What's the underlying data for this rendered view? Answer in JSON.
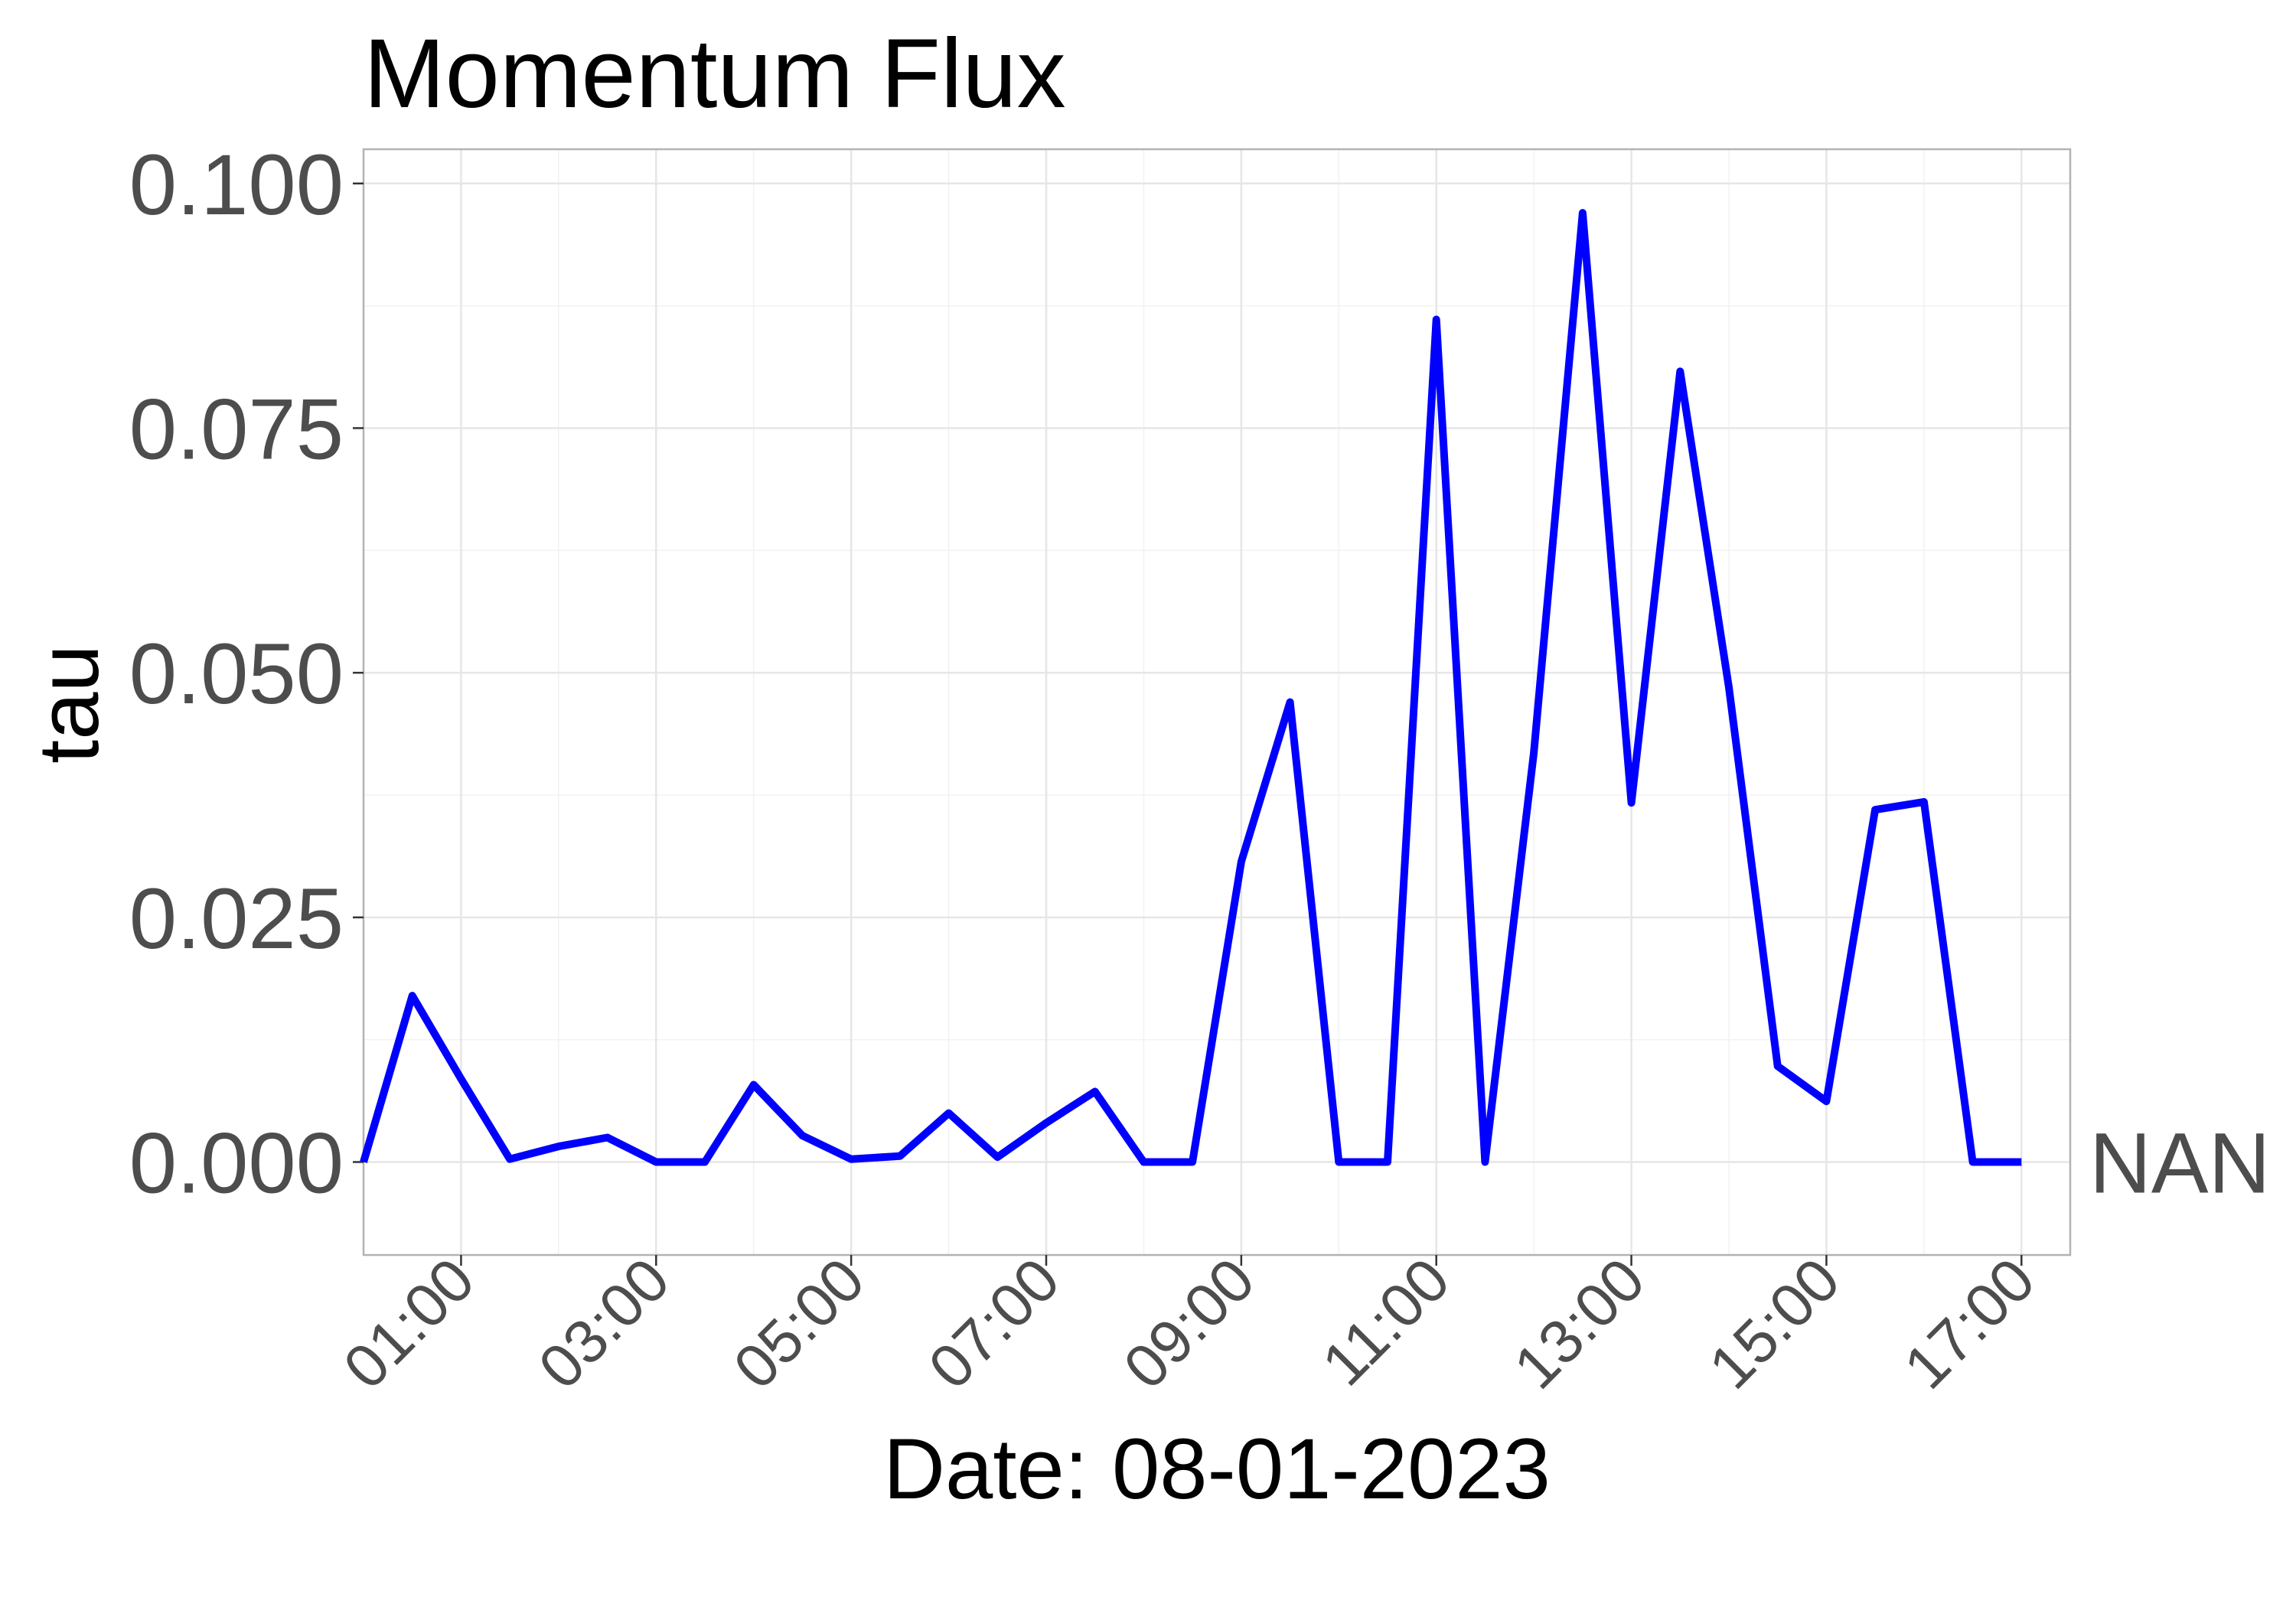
{
  "chart_data": {
    "type": "line",
    "title": "Momentum Flux",
    "xlabel": "Date: 08-01-2023",
    "ylabel": "tau",
    "xlim": [
      "00:00",
      "17:30"
    ],
    "ylim": [
      -0.0095,
      0.1035
    ],
    "x_ticks": [
      "01:00",
      "03:00",
      "05:00",
      "07:00",
      "09:00",
      "11:00",
      "13:00",
      "15:00",
      "17:00"
    ],
    "y_ticks": [
      "0.000",
      "0.025",
      "0.050",
      "0.075",
      "0.100"
    ],
    "grid": true,
    "color": "#0000ff",
    "annotation": {
      "text": "NAN",
      "y": 0.0
    },
    "series": [
      {
        "x": [
          "00:00",
          "00:30",
          "01:00",
          "01:30",
          "02:00",
          "02:30",
          "03:00",
          "03:30",
          "04:00",
          "04:30",
          "05:00",
          "05:30",
          "06:00",
          "06:30",
          "07:00",
          "07:30",
          "08:00",
          "08:30",
          "09:00",
          "09:30",
          "10:00",
          "10:30",
          "11:00",
          "11:30",
          "12:00",
          "12:30",
          "13:00",
          "13:30",
          "14:00",
          "14:30",
          "15:00",
          "15:30",
          "16:00",
          "16:30",
          "17:00"
        ],
        "values": [
          0.0,
          0.017,
          0.0085,
          0.0003,
          0.0016,
          0.0025,
          0.0,
          0.0,
          0.0079,
          0.0027,
          0.0003,
          0.0006,
          0.005,
          0.0005,
          0.004,
          0.0072,
          0.0,
          0.0,
          0.0307,
          0.047,
          0.0,
          0.0,
          0.0861,
          0.0,
          0.0418,
          0.097,
          0.0367,
          0.0808,
          0.0485,
          0.0098,
          0.0062,
          0.036,
          0.0368,
          0.0,
          0.0
        ]
      }
    ]
  }
}
